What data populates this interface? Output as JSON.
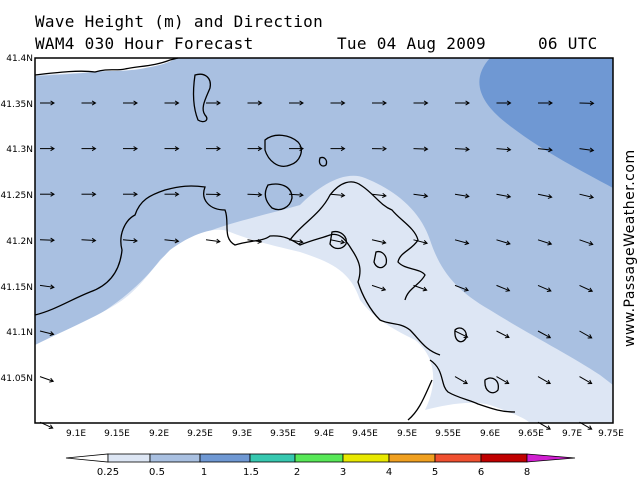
{
  "header": {
    "line1": "Wave Height (m) and Direction",
    "line2_left": "WAM4 030 Hour Forecast",
    "line2_date": "Tue 04 Aug 2009",
    "line2_time": "06 UTC"
  },
  "watermark": "www.PassageWeather.com",
  "axes": {
    "lat_labels": [
      "41.4N",
      "41.35N",
      "41.3N",
      "41.25N",
      "41.2N",
      "41.15N",
      "41.1N",
      "41.05N"
    ],
    "lon_labels": [
      "9.1E",
      "9.15E",
      "9.2E",
      "9.25E",
      "9.3E",
      "9.35E",
      "9.4E",
      "9.45E",
      "9.5E",
      "9.55E",
      "9.6E",
      "9.65E",
      "9.7E",
      "9.75E"
    ]
  },
  "legend": {
    "labels": [
      "0.25",
      "0.5",
      "1",
      "1.5",
      "2",
      "3",
      "4",
      "5",
      "6",
      "8"
    ],
    "colors": [
      "#ffffff",
      "#dde6f4",
      "#a9c0e1",
      "#6f98d3",
      "#37c8b0",
      "#58e858",
      "#e8e800",
      "#f0a020",
      "#f05030",
      "#c00000",
      "#d020d0"
    ]
  },
  "colors": {
    "land": "#ffffff",
    "sea_025_05": "#dde6f4",
    "sea_05_1": "#a9c0e1",
    "sea_1_15": "#6f98d3"
  }
}
